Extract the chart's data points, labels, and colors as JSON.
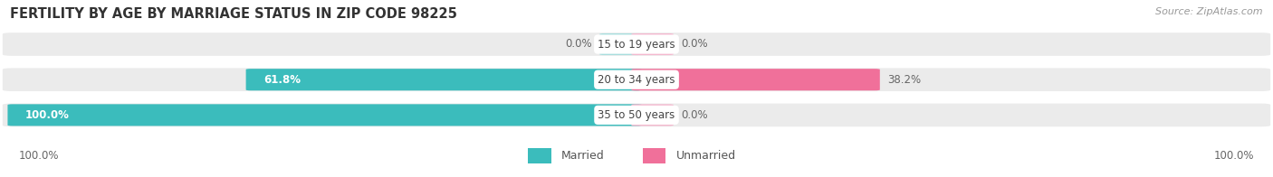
{
  "title": "FERTILITY BY AGE BY MARRIAGE STATUS IN ZIP CODE 98225",
  "source": "Source: ZipAtlas.com",
  "categories": [
    "15 to 19 years",
    "20 to 34 years",
    "35 to 50 years"
  ],
  "married_values": [
    0.0,
    61.8,
    100.0
  ],
  "unmarried_values": [
    0.0,
    38.2,
    0.0
  ],
  "married_color": "#3BBCBC",
  "married_color_light": "#A8DEDE",
  "unmarried_color": "#F0709A",
  "unmarried_color_light": "#F4B8CE",
  "bar_bg_color": "#EBEBEB",
  "bar_separator_color": "#CCCCCC",
  "label_color": "#666666",
  "legend_married": "Married",
  "legend_unmarried": "Unmarried",
  "title_fontsize": 10.5,
  "source_fontsize": 8,
  "label_fontsize": 8.5,
  "category_fontsize": 8.5,
  "legend_fontsize": 9
}
